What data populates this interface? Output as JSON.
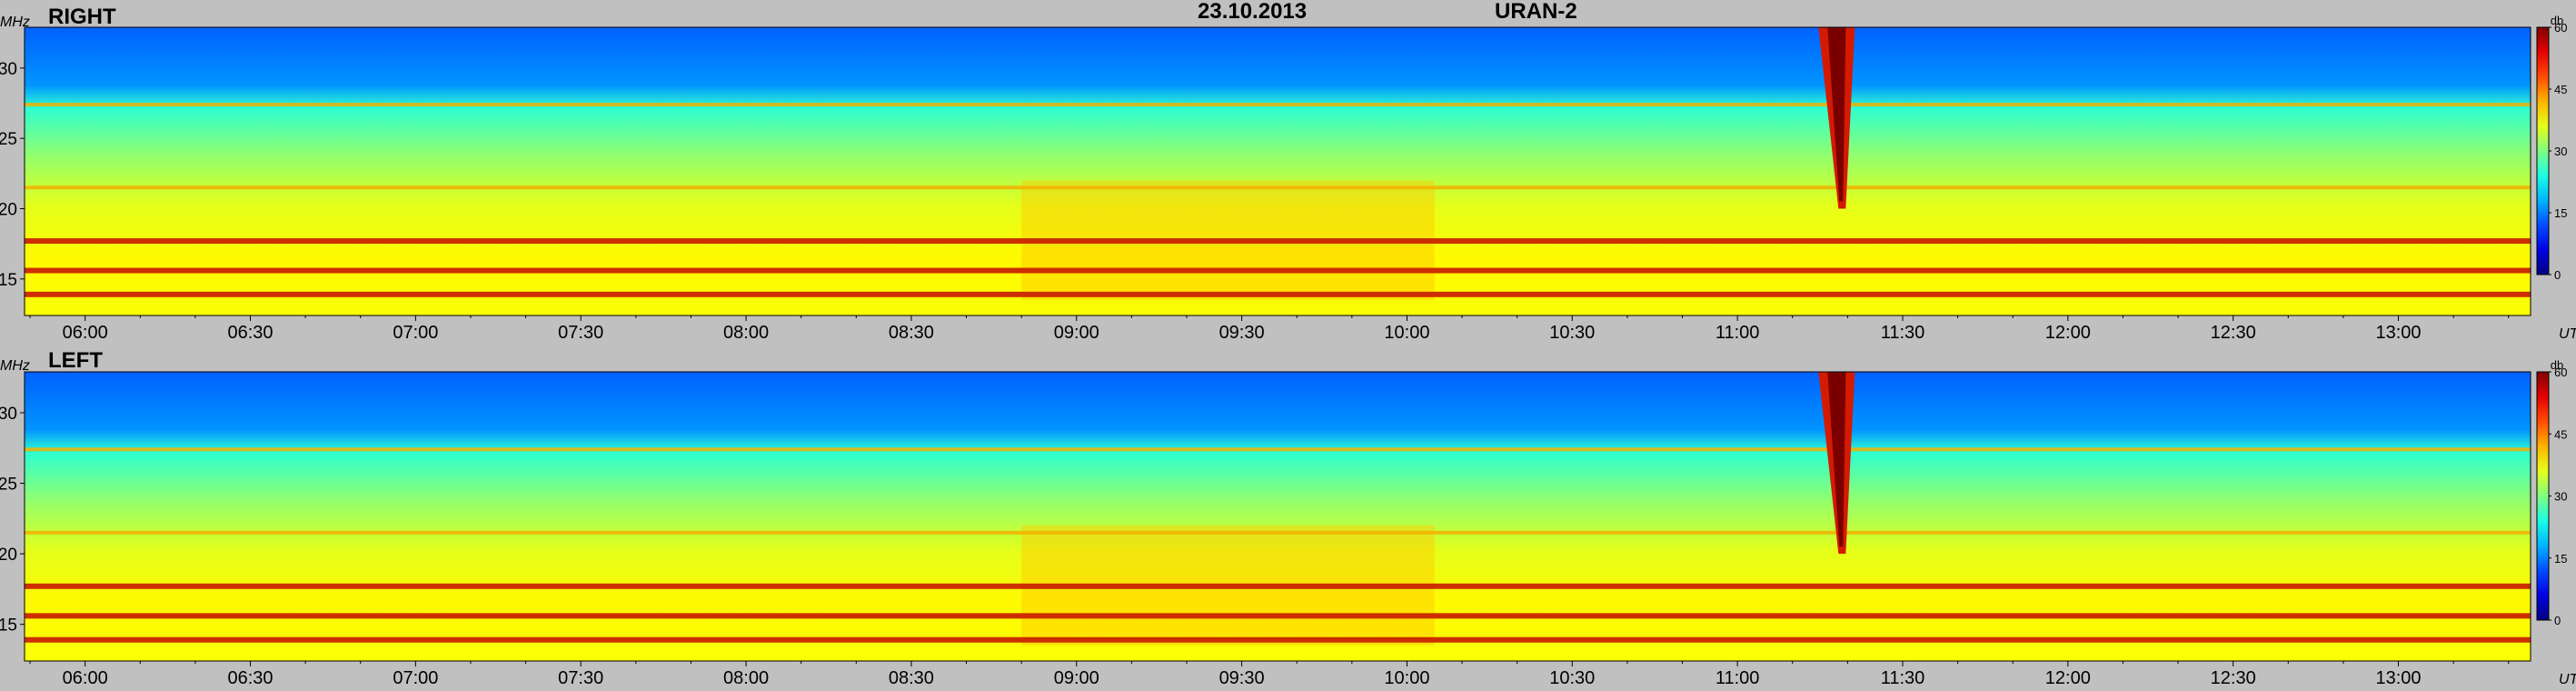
{
  "header": {
    "date": "23.10.2013",
    "instrument": "URAN-2"
  },
  "colors": {
    "background": "#c0c0c0",
    "panel_fill": "#36b8ef"
  },
  "chart_data": [
    {
      "type": "heatmap",
      "title": "RIGHT",
      "ylabel": "MHz",
      "xlabel": "UT",
      "yticks": [
        "30",
        "25",
        "20",
        "15"
      ],
      "ylim": [
        12.4,
        32.9
      ],
      "xticks": [
        "06:00",
        "06:30",
        "07:00",
        "07:30",
        "08:00",
        "08:30",
        "09:00",
        "09:30",
        "10:00",
        "10:30",
        "11:00",
        "11:30",
        "12:00",
        "12:30",
        "13:00"
      ],
      "xlim": [
        "05:49",
        "13:24"
      ],
      "colorbar": {
        "label": "db",
        "ticks": [
          "60",
          "45",
          "30",
          "15",
          "0"
        ],
        "range": [
          0,
          60
        ]
      },
      "features": [
        {
          "kind": "burst",
          "time": "11:19",
          "freq_range": [
            20,
            32.9
          ],
          "intensity": "high"
        },
        {
          "kind": "band",
          "freq": 17.7,
          "intensity": "high"
        },
        {
          "kind": "band",
          "freq": 15.6,
          "intensity": "high"
        },
        {
          "kind": "band",
          "freq": 13.9,
          "intensity": "high"
        },
        {
          "kind": "band",
          "freq": 27.4,
          "intensity": "medium"
        },
        {
          "kind": "band",
          "freq": 21.5,
          "intensity": "medium"
        }
      ]
    },
    {
      "type": "heatmap",
      "title": "LEFT",
      "ylabel": "MHz",
      "xlabel": "UT",
      "yticks": [
        "30",
        "25",
        "20",
        "15"
      ],
      "ylim": [
        12.4,
        32.9
      ],
      "xticks": [
        "06:00",
        "06:30",
        "07:00",
        "07:30",
        "08:00",
        "08:30",
        "09:00",
        "09:30",
        "10:00",
        "10:30",
        "11:00",
        "11:30",
        "12:00",
        "12:30",
        "13:00"
      ],
      "xlim": [
        "05:49",
        "13:24"
      ],
      "colorbar": {
        "label": "db",
        "ticks": [
          "60",
          "45",
          "30",
          "15",
          "0"
        ],
        "range": [
          0,
          60
        ]
      },
      "features": [
        {
          "kind": "burst",
          "time": "11:19",
          "freq_range": [
            20,
            32.9
          ],
          "intensity": "high"
        },
        {
          "kind": "band",
          "freq": 17.7,
          "intensity": "high"
        },
        {
          "kind": "band",
          "freq": 15.6,
          "intensity": "high"
        },
        {
          "kind": "band",
          "freq": 13.9,
          "intensity": "high"
        },
        {
          "kind": "band",
          "freq": 27.4,
          "intensity": "medium"
        },
        {
          "kind": "band",
          "freq": 21.5,
          "intensity": "medium"
        }
      ]
    }
  ]
}
